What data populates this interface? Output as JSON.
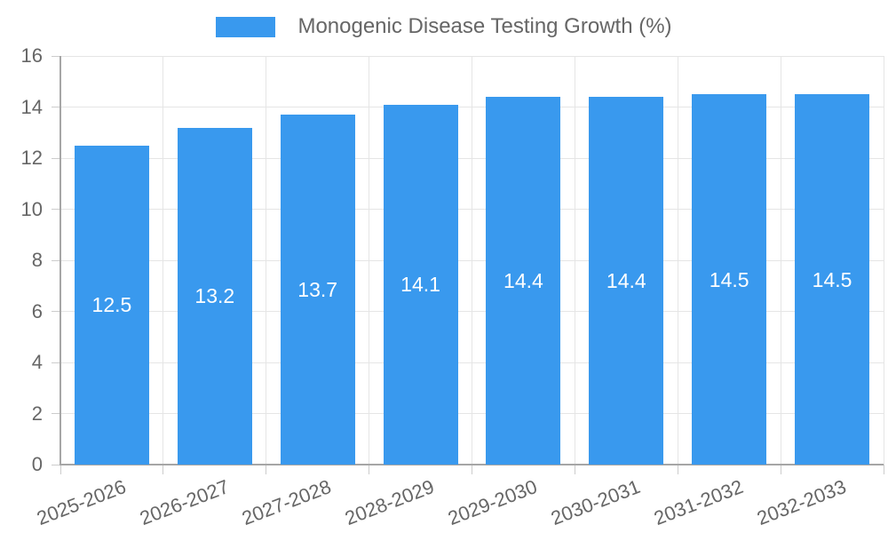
{
  "chart_data": {
    "type": "bar",
    "title": "Monogenic Disease Testing Growth (%)",
    "categories": [
      "2025-2026",
      "2026-2027",
      "2027-2028",
      "2028-2029",
      "2029-2030",
      "2030-2031",
      "2031-2032",
      "2032-2033"
    ],
    "values": [
      12.5,
      13.2,
      13.7,
      14.1,
      14.4,
      14.4,
      14.5,
      14.5
    ],
    "value_labels": [
      "12.5",
      "13.2",
      "13.7",
      "14.1",
      "14.4",
      "14.4",
      "14.5",
      "14.5"
    ],
    "xlabel": "",
    "ylabel": "",
    "ylim": [
      0,
      16
    ],
    "yticks": [
      "0",
      "2",
      "4",
      "6",
      "8",
      "10",
      "12",
      "14",
      "16"
    ],
    "grid": "on",
    "legend_position": "top-center",
    "bar_color": "#3999EE",
    "value_label_color": "#ffffff",
    "tick_label_color": "#666666",
    "legend_text_color": "#666666",
    "gridline_color": "#e5e5e5",
    "axis_line_color": "#a6a6a6"
  },
  "legend": {
    "label": "Monogenic Disease Testing Growth (%)"
  }
}
